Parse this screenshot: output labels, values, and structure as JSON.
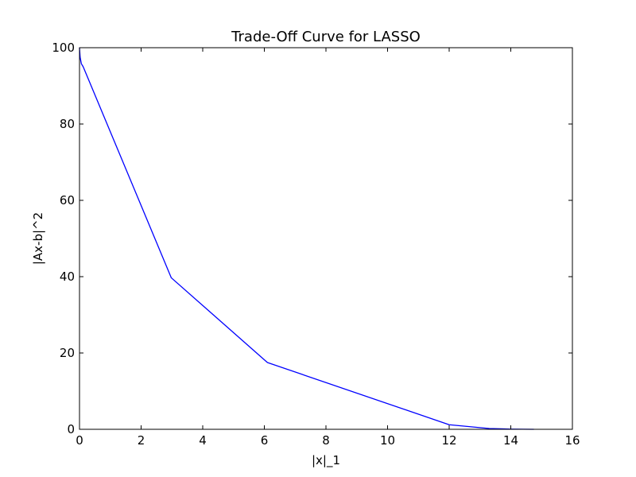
{
  "chart_data": {
    "type": "line",
    "title": "Trade-Off Curve for LASSO",
    "xlabel": "|x|_1",
    "ylabel": "|Ax-b|^2",
    "xlim": [
      0,
      16
    ],
    "ylim": [
      0,
      100
    ],
    "xticks": [
      0,
      2,
      4,
      6,
      8,
      10,
      12,
      14,
      16
    ],
    "yticks": [
      0,
      20,
      40,
      60,
      80,
      100
    ],
    "grid": false,
    "legend": "none",
    "series": [
      {
        "color": "#0000ff",
        "x": [
          0.0,
          0.02,
          0.06,
          0.12,
          2.98,
          6.1,
          12.0,
          13.3,
          14.0,
          14.75
        ],
        "y": [
          100.0,
          97.5,
          95.8,
          95.0,
          39.7,
          17.5,
          1.2,
          0.2,
          0.05,
          0.0
        ]
      }
    ]
  }
}
